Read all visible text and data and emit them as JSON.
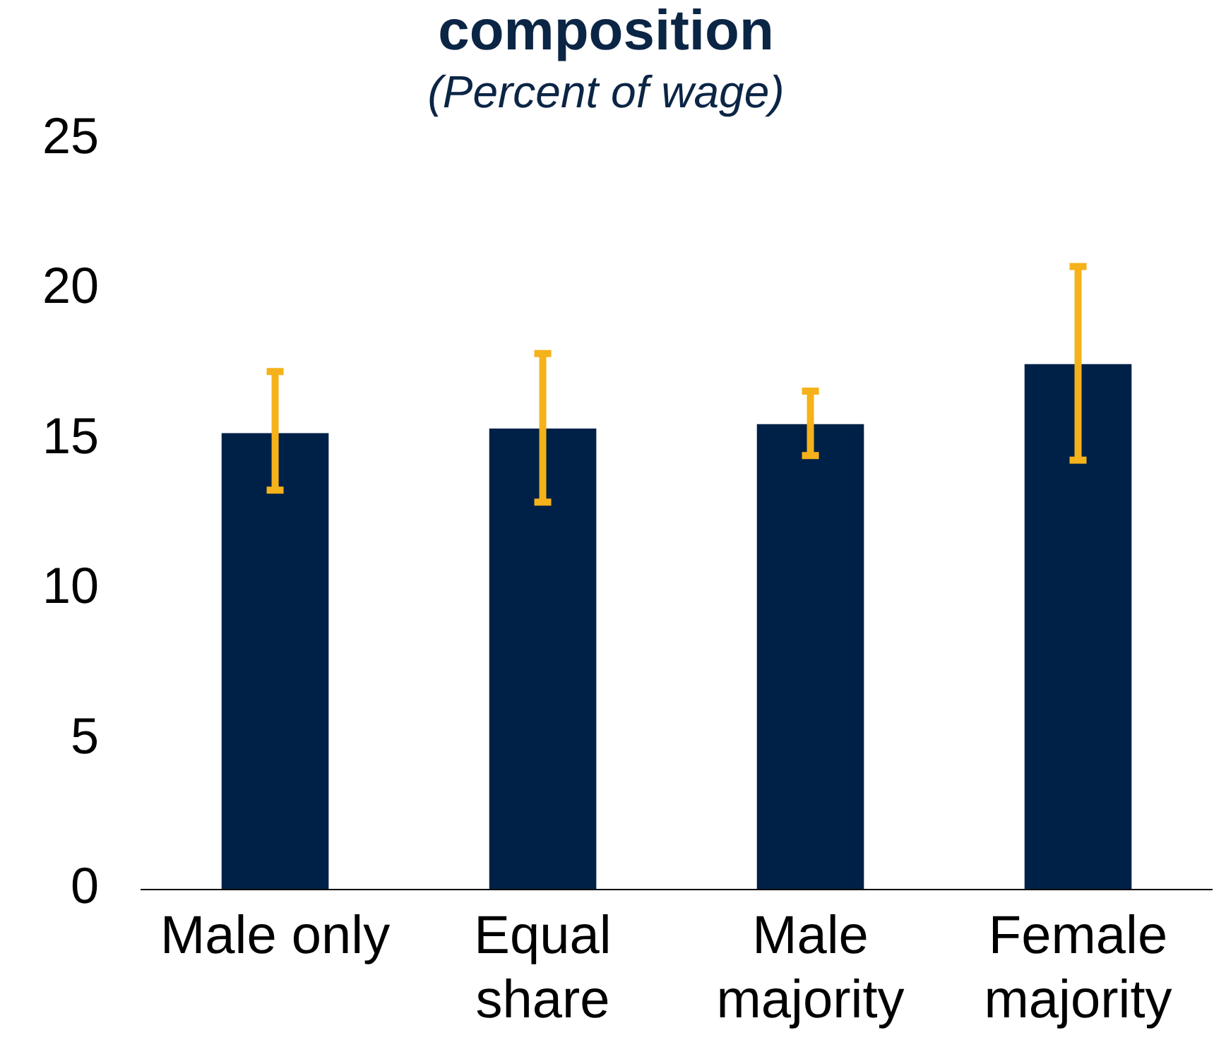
{
  "chart_data": {
    "type": "bar",
    "title": "composition",
    "subtitle": "(Percent of wage)",
    "categories": [
      "Male only",
      "Equal share",
      "Male majority",
      "Female majority"
    ],
    "values": [
      15.2,
      15.35,
      15.5,
      17.5
    ],
    "errors": [
      [
        13.3,
        17.25
      ],
      [
        12.9,
        17.85
      ],
      [
        14.45,
        16.6
      ],
      [
        14.3,
        20.75
      ]
    ],
    "color": "#002147",
    "ylim": [
      0,
      25
    ],
    "yticks": [
      0,
      5,
      10,
      15,
      20,
      25
    ],
    "grid": false,
    "legend": false
  }
}
